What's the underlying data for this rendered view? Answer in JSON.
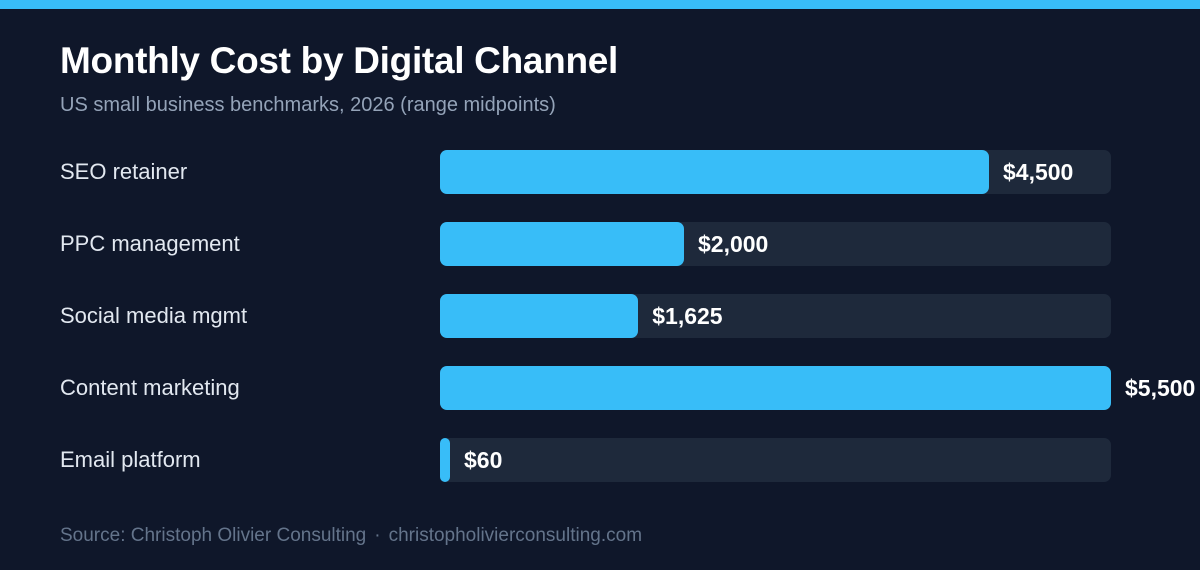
{
  "colors": {
    "background": "#0f172a",
    "accent": "#38bdf8",
    "track": "#1e293b",
    "title": "#ffffff",
    "subtitle": "#94a3b8",
    "footer": "#64748b"
  },
  "footer": {
    "source": "Source: Christoph Olivier Consulting",
    "separator": "·",
    "website": "christopholivierconsulting.com"
  },
  "chart_data": {
    "type": "bar",
    "orientation": "horizontal",
    "title": "Monthly Cost by Digital Channel",
    "subtitle": "US small business benchmarks, 2026 (range midpoints)",
    "categories": [
      "SEO retainer",
      "PPC management",
      "Social media mgmt",
      "Content marketing",
      "Email platform"
    ],
    "values": [
      4500,
      2000,
      1625,
      5500,
      60
    ],
    "value_labels": [
      "$4,500",
      "$2,000",
      "$1,625",
      "$5,500",
      "$60"
    ],
    "xlim": [
      0,
      5500
    ],
    "grid": false,
    "legend": "none"
  }
}
